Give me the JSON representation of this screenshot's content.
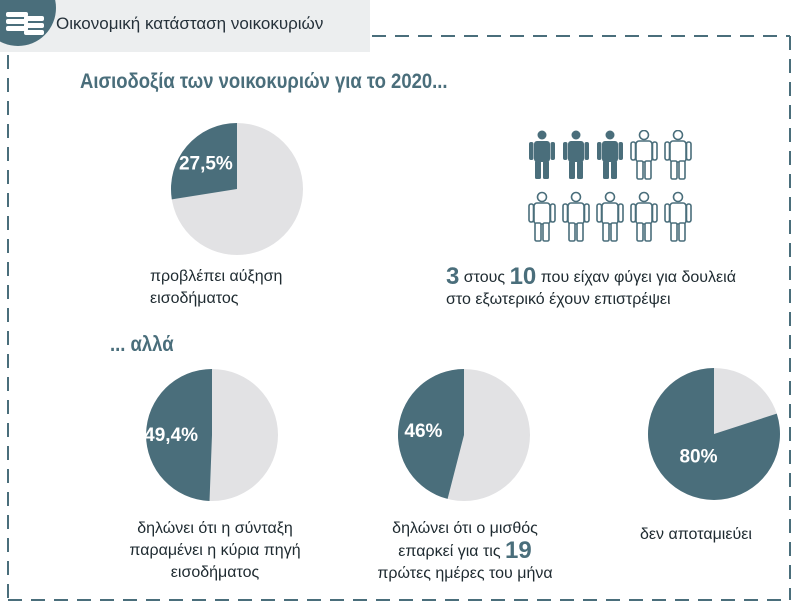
{
  "header": {
    "title": "Οικονομική κατάσταση νοικοκυριών"
  },
  "title": "Αισιοδοξία των νοικοκυριών για το 2020...",
  "subtitle": "... αλλά",
  "colors": {
    "accent": "#4a6e7b",
    "light": "#e2e2e4",
    "border": "#4a6e7b",
    "text": "#1e2a30"
  },
  "icons": {
    "coins": "coin-stack-icon",
    "person": "person-icon"
  },
  "chart_data": [
    {
      "type": "pie",
      "value": 27.5,
      "label": "27,5%",
      "caption_lines": [
        "προβλέπει αύξηση",
        "εισοδήματος"
      ]
    },
    {
      "type": "pictogram",
      "total": 10,
      "highlighted": 3,
      "caption": {
        "num1": "3",
        "t1": " στους ",
        "num2": "10",
        "t2": " που είχαν φύγει για δουλειά",
        "line2": "στο εξωτερικό έχουν επιστρέψει"
      }
    },
    {
      "type": "pie",
      "value": 49.4,
      "label": "49,4%",
      "caption_lines": [
        "δηλώνει ότι η σύνταξη",
        "παραμένει η κύρια πηγή",
        "εισοδήματος"
      ]
    },
    {
      "type": "pie",
      "value": 46,
      "label": "46%",
      "caption": {
        "line1": "δηλώνει ότι ο μισθός",
        "line2": "επαρκεί για τις ",
        "line2_num": "19",
        "line3": "πρώτες ημέρες του μήνα"
      }
    },
    {
      "type": "pie",
      "value": 80,
      "label": "80%",
      "caption_lines": [
        "δεν αποταμιεύει"
      ]
    }
  ]
}
